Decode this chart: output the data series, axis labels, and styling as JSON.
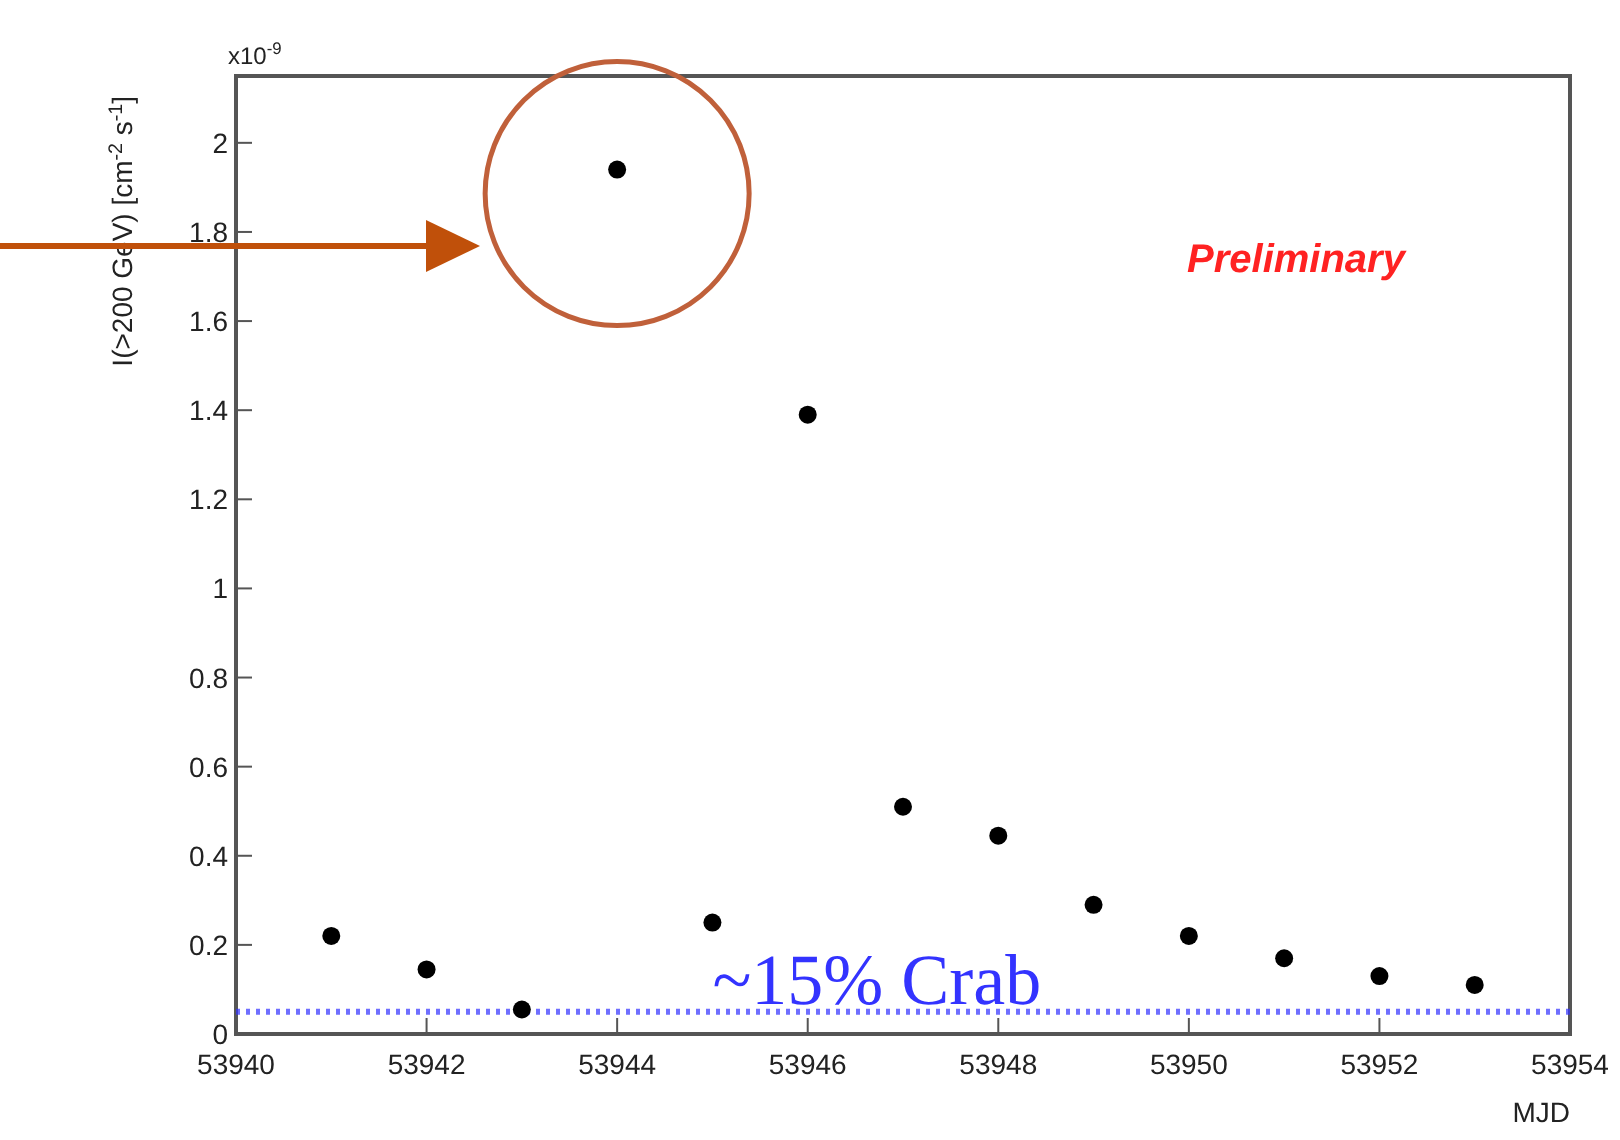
{
  "chart_data": {
    "type": "scatter",
    "xlabel": "MJD",
    "ylabel": "I(>200 GeV) [cm$^{-2}$ s$^{-1}$]",
    "x": [
      53941,
      53942,
      53943,
      53944,
      53945,
      53946,
      53947,
      53948,
      53949,
      53950,
      53951,
      53952,
      53953
    ],
    "series": [
      {
        "color": "#000000",
        "values": [
          0.22,
          0.145,
          0.055,
          1.94,
          0.25,
          1.39,
          0.51,
          0.445,
          0.29,
          0.22,
          0.17,
          0.13,
          0.11
        ]
      }
    ],
    "xlim": [
      53940,
      53954
    ],
    "xticks": [
      53940,
      53942,
      53944,
      53946,
      53948,
      53950,
      53952,
      53954
    ],
    "ylim": [
      0,
      2.15
    ],
    "yticks": [
      0,
      0.2,
      0.4,
      0.6,
      0.8,
      1,
      1.2,
      1.4,
      1.6,
      1.8,
      2
    ],
    "ref_lines": [
      {
        "axis": "y",
        "value": 0.05,
        "label": "~15% Crab",
        "color": "#3333ff",
        "line_style": "dotted"
      }
    ],
    "annotations": [
      "x10$^{-9}$",
      "Preliminary"
    ],
    "marker": "circle",
    "grid": false
  }
}
